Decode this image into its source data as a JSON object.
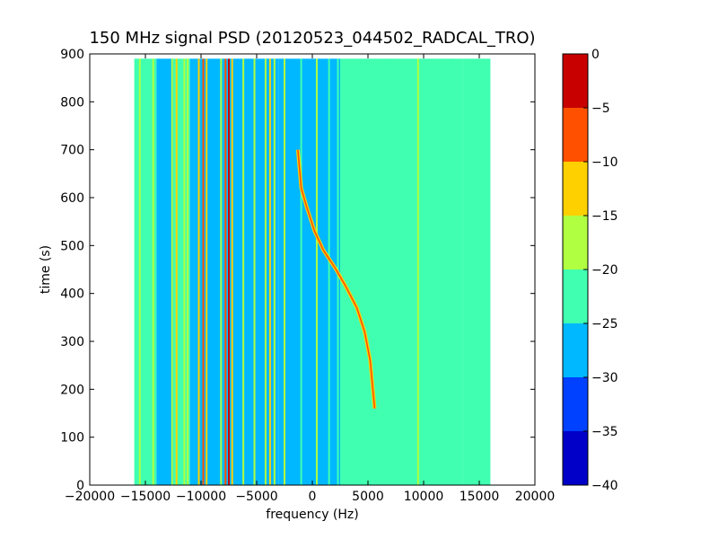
{
  "chart_data": {
    "type": "heatmap",
    "title": "150 MHz signal PSD (20120523_044502_RADCAL_TRO)",
    "xlabel": "frequency (Hz)",
    "ylabel": "time (s)",
    "xlim": [
      -20000,
      20000
    ],
    "ylim": [
      0,
      900
    ],
    "xticks": [
      -20000,
      -15000,
      -10000,
      -5000,
      0,
      5000,
      10000,
      15000,
      20000
    ],
    "xtick_labels": [
      "−20000",
      "−15000",
      "−10000",
      "−5000",
      "0",
      "5000",
      "10000",
      "15000",
      "20000"
    ],
    "yticks": [
      0,
      100,
      200,
      300,
      400,
      500,
      600,
      700,
      800,
      900
    ],
    "ytick_labels": [
      "0",
      "100",
      "200",
      "300",
      "400",
      "500",
      "600",
      "700",
      "800",
      "900"
    ],
    "data_extent": {
      "freq": [
        -16000,
        16000
      ],
      "time": [
        0,
        890
      ]
    },
    "colorbar": {
      "levels": [
        -40,
        -35,
        -30,
        -25,
        -20,
        -15,
        -10,
        -5,
        0
      ],
      "tick_labels": [
        "−40",
        "−35",
        "−30",
        "−25",
        "−20",
        "−15",
        "−10",
        "−5",
        "0"
      ],
      "colors": [
        "#0000c8",
        "#0040ff",
        "#00b8ff",
        "#40ffb0",
        "#b0ff40",
        "#ffd000",
        "#ff5000",
        "#c80000"
      ]
    },
    "background_bands": [
      {
        "from": -16000,
        "to": -14000,
        "level": -22.5
      },
      {
        "from": -14000,
        "to": -12500,
        "level": -27.5
      },
      {
        "from": -12500,
        "to": -11000,
        "level": -22.5
      },
      {
        "from": -11000,
        "to": -3000,
        "level": -27.5
      },
      {
        "from": -3000,
        "to": 2500,
        "level": -27.5
      },
      {
        "from": 2500,
        "to": 13500,
        "level": -25
      },
      {
        "from": 13500,
        "to": 16000,
        "level": -22.5
      }
    ],
    "vertical_lines": [
      {
        "freq": -15500,
        "level": -17.5
      },
      {
        "freq": -15000,
        "level": -22.5
      },
      {
        "freq": -14300,
        "level": -17.5
      },
      {
        "freq": -12600,
        "level": -17.5
      },
      {
        "freq": -12200,
        "level": -12.5
      },
      {
        "freq": -11500,
        "level": -17.5
      },
      {
        "freq": -11200,
        "level": -17.5
      },
      {
        "freq": -10200,
        "level": -12.5
      },
      {
        "freq": -9800,
        "level": -7.5
      },
      {
        "freq": -9500,
        "level": -12.5
      },
      {
        "freq": -8200,
        "level": -17.5
      },
      {
        "freq": -7800,
        "level": -7.5
      },
      {
        "freq": -7500,
        "level": -2.5
      },
      {
        "freq": -7200,
        "level": -12.5
      },
      {
        "freq": -6200,
        "level": -17.5
      },
      {
        "freq": -5200,
        "level": -17.5
      },
      {
        "freq": -4200,
        "level": -17.5
      },
      {
        "freq": -3800,
        "level": -12.5
      },
      {
        "freq": -3400,
        "level": -17.5
      },
      {
        "freq": -2500,
        "level": -17.5
      },
      {
        "freq": -1000,
        "level": -22.5
      },
      {
        "freq": 400,
        "level": -17.5
      },
      {
        "freq": 1500,
        "level": -22.5
      },
      {
        "freq": 2300,
        "level": -22.5
      },
      {
        "freq": 6500,
        "level": -22.5
      },
      {
        "freq": 9500,
        "level": -17.5
      },
      {
        "freq": 10000,
        "level": -22.5
      },
      {
        "freq": 12500,
        "level": -22.5
      }
    ],
    "chirp_track": [
      {
        "freq": -1300,
        "time": 700
      },
      {
        "freq": -1000,
        "time": 620
      },
      {
        "freq": -500,
        "time": 580
      },
      {
        "freq": 200,
        "time": 530
      },
      {
        "freq": 1000,
        "time": 490
      },
      {
        "freq": 2000,
        "time": 455
      },
      {
        "freq": 3000,
        "time": 415
      },
      {
        "freq": 4000,
        "time": 370
      },
      {
        "freq": 4700,
        "time": 320
      },
      {
        "freq": 5200,
        "time": 260
      },
      {
        "freq": 5600,
        "time": 160
      }
    ],
    "grid": false
  }
}
